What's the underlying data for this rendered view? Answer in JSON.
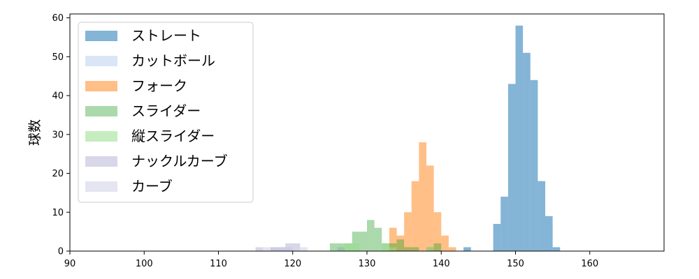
{
  "chart_data": {
    "type": "bar",
    "ylabel": "球数",
    "xlabel": "",
    "xlim": [
      90,
      170
    ],
    "ylim": [
      0,
      61
    ],
    "xticks": [
      90,
      100,
      110,
      120,
      130,
      140,
      150,
      160
    ],
    "yticks": [
      0,
      10,
      20,
      30,
      40,
      50,
      60
    ],
    "bin_width": 1,
    "grid": false,
    "legend_position": "top-left",
    "series": [
      {
        "name": "ストレート",
        "color": "#1f77b4",
        "opacity": 0.55,
        "bins": [
          [
            143,
            1
          ],
          [
            147,
            7
          ],
          [
            148,
            14
          ],
          [
            149,
            43
          ],
          [
            150,
            58
          ],
          [
            151,
            51
          ],
          [
            152,
            44
          ],
          [
            153,
            18
          ],
          [
            154,
            9
          ],
          [
            155,
            1
          ]
        ]
      },
      {
        "name": "カットボール",
        "color": "#aec7e8",
        "opacity": 0.45,
        "bins": [
          [
            126,
            1
          ]
        ]
      },
      {
        "name": "フォーク",
        "color": "#ff7f0e",
        "opacity": 0.5,
        "bins": [
          [
            133,
            6
          ],
          [
            134,
            4
          ],
          [
            135,
            10
          ],
          [
            136,
            18
          ],
          [
            137,
            28
          ],
          [
            138,
            22
          ],
          [
            139,
            10
          ],
          [
            140,
            4
          ],
          [
            141,
            1
          ]
        ]
      },
      {
        "name": "スライダー",
        "color": "#2ca02c",
        "opacity": 0.4,
        "bins": [
          [
            125,
            2
          ],
          [
            126,
            2
          ],
          [
            127,
            2
          ],
          [
            128,
            5
          ],
          [
            129,
            5
          ],
          [
            130,
            8
          ],
          [
            131,
            6
          ],
          [
            132,
            2
          ],
          [
            133,
            2
          ],
          [
            134,
            3
          ],
          [
            135,
            1
          ],
          [
            136,
            1
          ],
          [
            138,
            1
          ],
          [
            139,
            2
          ]
        ]
      },
      {
        "name": "縦スライダー",
        "color": "#98df8a",
        "opacity": 0.55,
        "bins": [
          [
            127,
            2
          ],
          [
            128,
            2
          ],
          [
            132,
            2
          ],
          [
            133,
            1
          ],
          [
            138,
            1
          ]
        ]
      },
      {
        "name": "ナックルカーブ",
        "color": "#9e9ac8",
        "opacity": 0.4,
        "bins": [
          [
            115,
            1
          ],
          [
            117,
            1
          ],
          [
            118,
            1
          ],
          [
            119,
            2
          ],
          [
            120,
            2
          ]
        ]
      },
      {
        "name": "カーブ",
        "color": "#bcbddc",
        "opacity": 0.4,
        "bins": [
          [
            116,
            1
          ],
          [
            117,
            1
          ],
          [
            118,
            1
          ],
          [
            119,
            1
          ],
          [
            121,
            1
          ]
        ]
      }
    ]
  }
}
